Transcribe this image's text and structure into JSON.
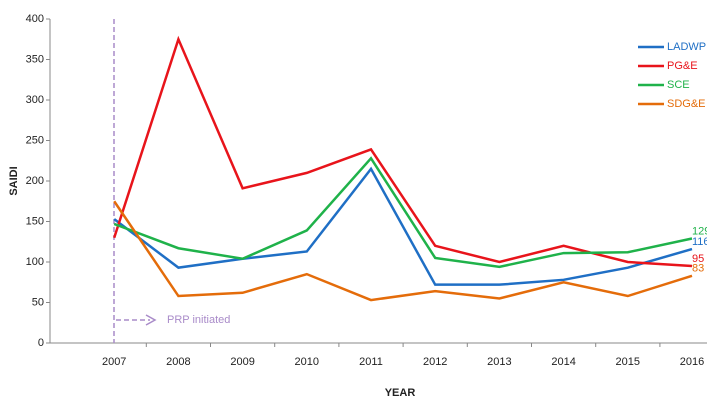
{
  "chart_data": {
    "type": "line",
    "y_label": "SAIDI",
    "x_label": "YEAR",
    "annotation": "PRP initiated",
    "categories": [
      "2007",
      "2008",
      "2009",
      "2010",
      "2011",
      "2012",
      "2013",
      "2014",
      "2015",
      "2016"
    ],
    "series": [
      {
        "name": "LADWP",
        "color": "#1f6fc5",
        "values": [
          153,
          93,
          104,
          113,
          215,
          72,
          72,
          78,
          93,
          116
        ]
      },
      {
        "name": "PG&E",
        "color": "#e8141b",
        "values": [
          130,
          375,
          191,
          210,
          239,
          120,
          100,
          120,
          100,
          95
        ]
      },
      {
        "name": "SCE",
        "color": "#1fb24a",
        "values": [
          147,
          117,
          104,
          139,
          228,
          105,
          94,
          111,
          112,
          129
        ]
      },
      {
        "name": "SDG&E",
        "color": "#e46c0a",
        "values": [
          175,
          58,
          62,
          85,
          53,
          64,
          55,
          75,
          58,
          83
        ]
      }
    ],
    "ylim": [
      0,
      400
    ],
    "yticks": [
      0,
      50,
      100,
      150,
      200,
      250,
      300,
      350,
      400
    ],
    "legend": "top-right"
  }
}
